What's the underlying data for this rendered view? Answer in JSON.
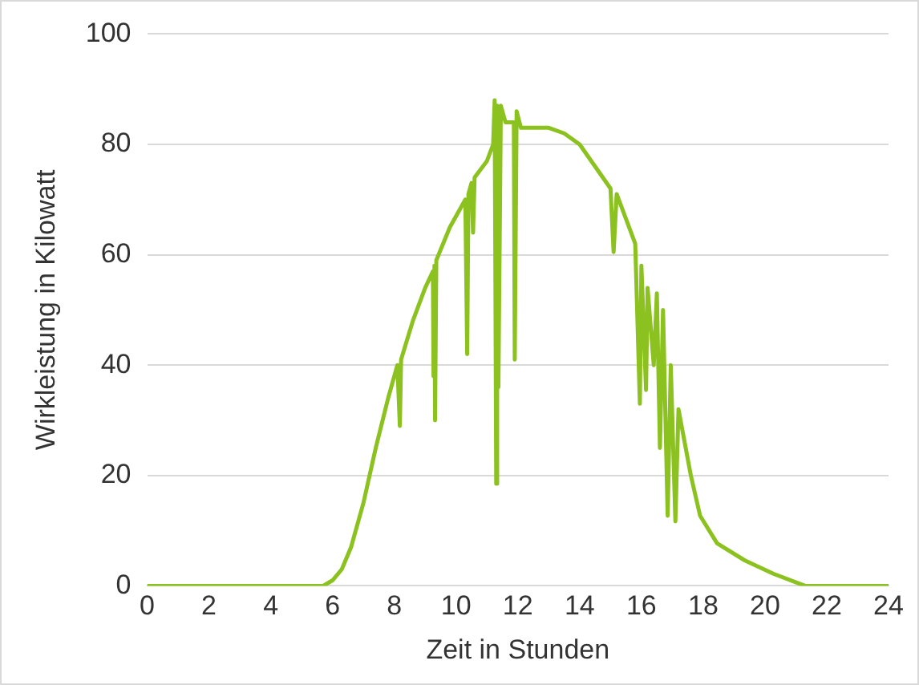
{
  "chart_data": {
    "type": "line",
    "xlabel": "Zeit in Stunden",
    "ylabel": "Wirkleistung in Kilowatt",
    "xlim": [
      0,
      24
    ],
    "xticks": [
      0,
      2,
      4,
      6,
      8,
      10,
      12,
      14,
      16,
      18,
      20,
      22,
      24
    ],
    "ylim": [
      0,
      100
    ],
    "yticks": [
      0,
      20,
      40,
      60,
      80,
      100
    ],
    "grid": "y",
    "legend": false,
    "marker": "none",
    "line_style": "solid",
    "series": [
      {
        "color": "#8cc21f",
        "x": [
          0,
          5.7,
          6,
          6.3,
          6.6,
          7,
          7.4,
          7.8,
          8.1,
          8.18,
          8.22,
          8.6,
          9,
          9.25,
          9.27,
          9.3,
          9.32,
          9.36,
          9.8,
          10.3,
          10.36,
          10.4,
          10.5,
          10.55,
          10.6,
          11,
          11.2,
          11.25,
          11.3,
          11.33,
          11.37,
          11.45,
          11.6,
          11.87,
          11.9,
          11.96,
          12.1,
          13,
          13.5,
          14,
          14.5,
          15,
          15.1,
          15.2,
          15.6,
          15.8,
          15.95,
          16,
          16.15,
          16.2,
          16.4,
          16.5,
          16.6,
          16.7,
          16.85,
          16.95,
          17.1,
          17.2,
          17.6,
          17.9,
          18.45,
          19.35,
          20.27,
          21.3,
          24
        ],
        "values": [
          0,
          0,
          1,
          3,
          7,
          15,
          25,
          34,
          40,
          29,
          41,
          48,
          54,
          57,
          38,
          58,
          30,
          59,
          65,
          70,
          42,
          71,
          73,
          64,
          74,
          77,
          80,
          88,
          18.5,
          87,
          36,
          87,
          84,
          84,
          41,
          86,
          83,
          83,
          82,
          80,
          76,
          72,
          60.5,
          71,
          65,
          62,
          33,
          58,
          35.5,
          54,
          40,
          53,
          25,
          50,
          12.7,
          40,
          11.7,
          32,
          20,
          12.7,
          7.7,
          4.6,
          2.2,
          0,
          0
        ]
      }
    ]
  }
}
